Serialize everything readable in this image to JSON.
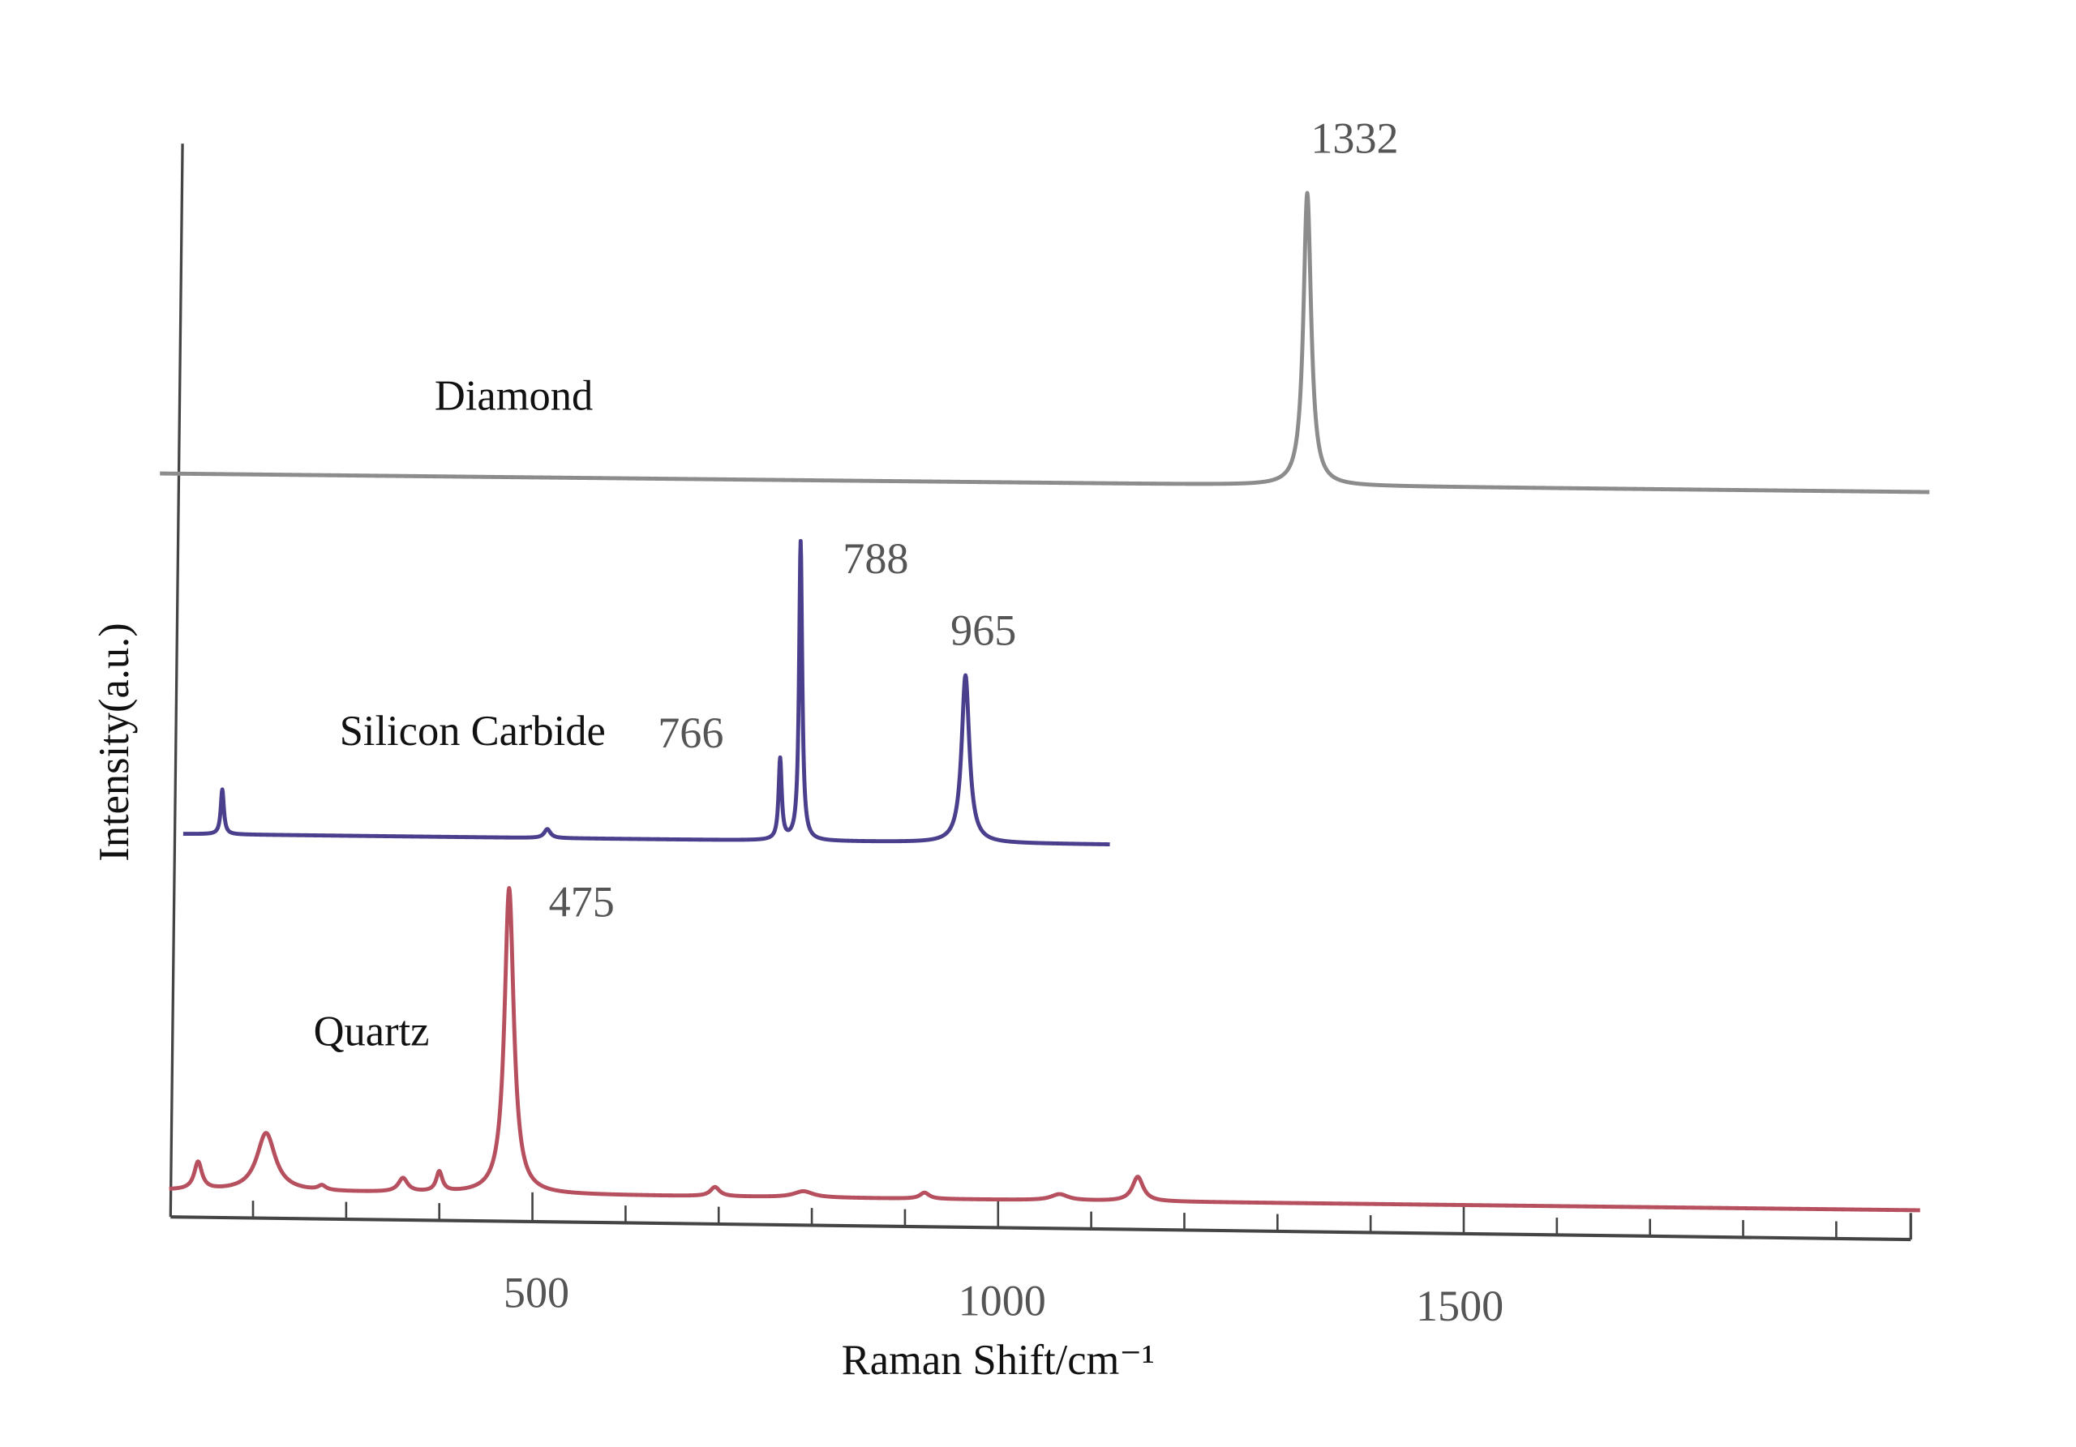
{
  "chart_data": {
    "type": "line",
    "title": "",
    "xlabel": "Raman Shift/cm⁻¹",
    "ylabel": "Intensity(a.u.)",
    "xlim": [
      100,
      2000
    ],
    "x_ticks_major": [
      500,
      1000,
      1500
    ],
    "x_tick_labels": [
      "500",
      "1000",
      "1500"
    ],
    "x_ticks_minor_step": 100,
    "grid": false,
    "legend": "none (series labelled inline)",
    "series": [
      {
        "name": "Diamond",
        "color": "#8c8c8c",
        "x_range": [
          100,
          2000
        ],
        "peaks": [
          {
            "center": 1332,
            "intensity": 100,
            "width": 10
          }
        ],
        "peak_labels": [
          "1332"
        ]
      },
      {
        "name": "Silicon Carbide",
        "color": "#4a3f8c",
        "x_range": [
          125,
          1120
        ],
        "peaks": [
          {
            "center": 167,
            "intensity": 15,
            "width": 4
          },
          {
            "center": 516,
            "intensity": 3,
            "width": 8
          },
          {
            "center": 766,
            "intensity": 27,
            "width": 4
          },
          {
            "center": 788,
            "intensity": 100,
            "width": 4
          },
          {
            "center": 965,
            "intensity": 56,
            "width": 10
          }
        ],
        "peak_labels": [
          "766",
          "788",
          "965"
        ]
      },
      {
        "name": "Quartz",
        "color": "#b6505f",
        "x_range": [
          110,
          1990
        ],
        "peaks": [
          {
            "center": 141,
            "intensity": 9,
            "width": 10
          },
          {
            "center": 214,
            "intensity": 19,
            "width": 24
          },
          {
            "center": 274,
            "intensity": 1.5,
            "width": 10
          },
          {
            "center": 361,
            "intensity": 4.5,
            "width": 12
          },
          {
            "center": 400,
            "intensity": 6.5,
            "width": 8
          },
          {
            "center": 475,
            "intensity": 100,
            "width": 12
          },
          {
            "center": 696,
            "intensity": 3,
            "width": 12
          },
          {
            "center": 791,
            "intensity": 2,
            "width": 25
          },
          {
            "center": 921,
            "intensity": 2,
            "width": 12
          },
          {
            "center": 1066,
            "intensity": 2,
            "width": 22
          },
          {
            "center": 1150,
            "intensity": 8,
            "width": 14
          }
        ],
        "peak_labels": [
          "475"
        ]
      }
    ]
  }
}
